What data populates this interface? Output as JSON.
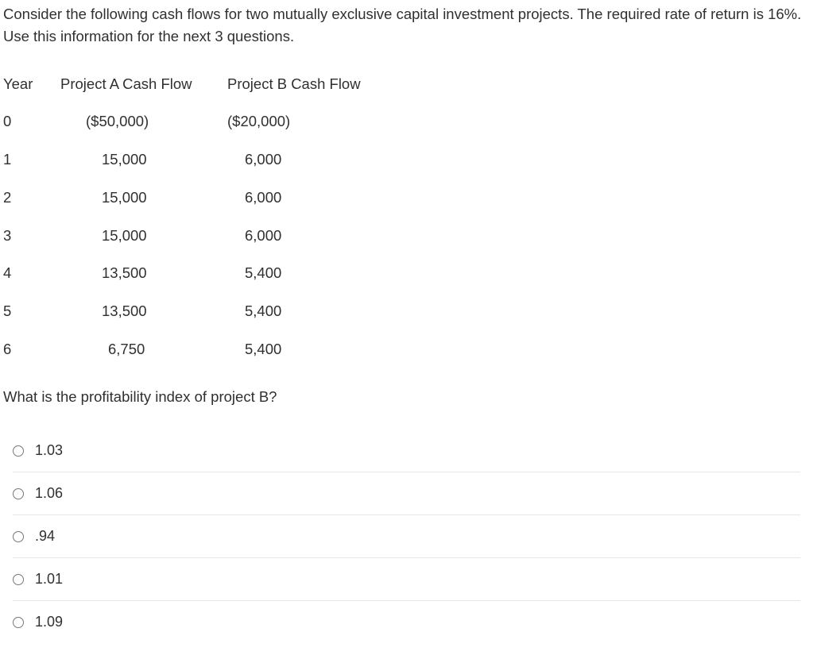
{
  "intro": "Consider the following cash flows for two mutually exclusive capital investment projects. The required rate of return is 16%. Use this information for the next 3 questions.",
  "table": {
    "headers": {
      "year": "Year",
      "a": "Project A Cash Flow",
      "b": "Project B Cash Flow"
    },
    "rows": [
      {
        "year": "0",
        "a": "($50,000)",
        "b": "($20,000)"
      },
      {
        "year": "1",
        "a": "15,000",
        "b": "6,000"
      },
      {
        "year": "2",
        "a": "15,000",
        "b": "6,000"
      },
      {
        "year": "3",
        "a": "15,000",
        "b": "6,000"
      },
      {
        "year": "4",
        "a": "13,500",
        "b": "5,400"
      },
      {
        "year": "5",
        "a": "13,500",
        "b": "5,400"
      },
      {
        "year": "6",
        "a": "6,750",
        "b": "5,400"
      }
    ]
  },
  "question": "What is the profitability index of project B?",
  "options": [
    "1.03",
    "1.06",
    ".94",
    "1.01",
    "1.09"
  ],
  "colors": {
    "text": "#303030",
    "border": "#e6e6e6",
    "background": "#ffffff"
  },
  "type": "table",
  "font_size_pt": 14
}
